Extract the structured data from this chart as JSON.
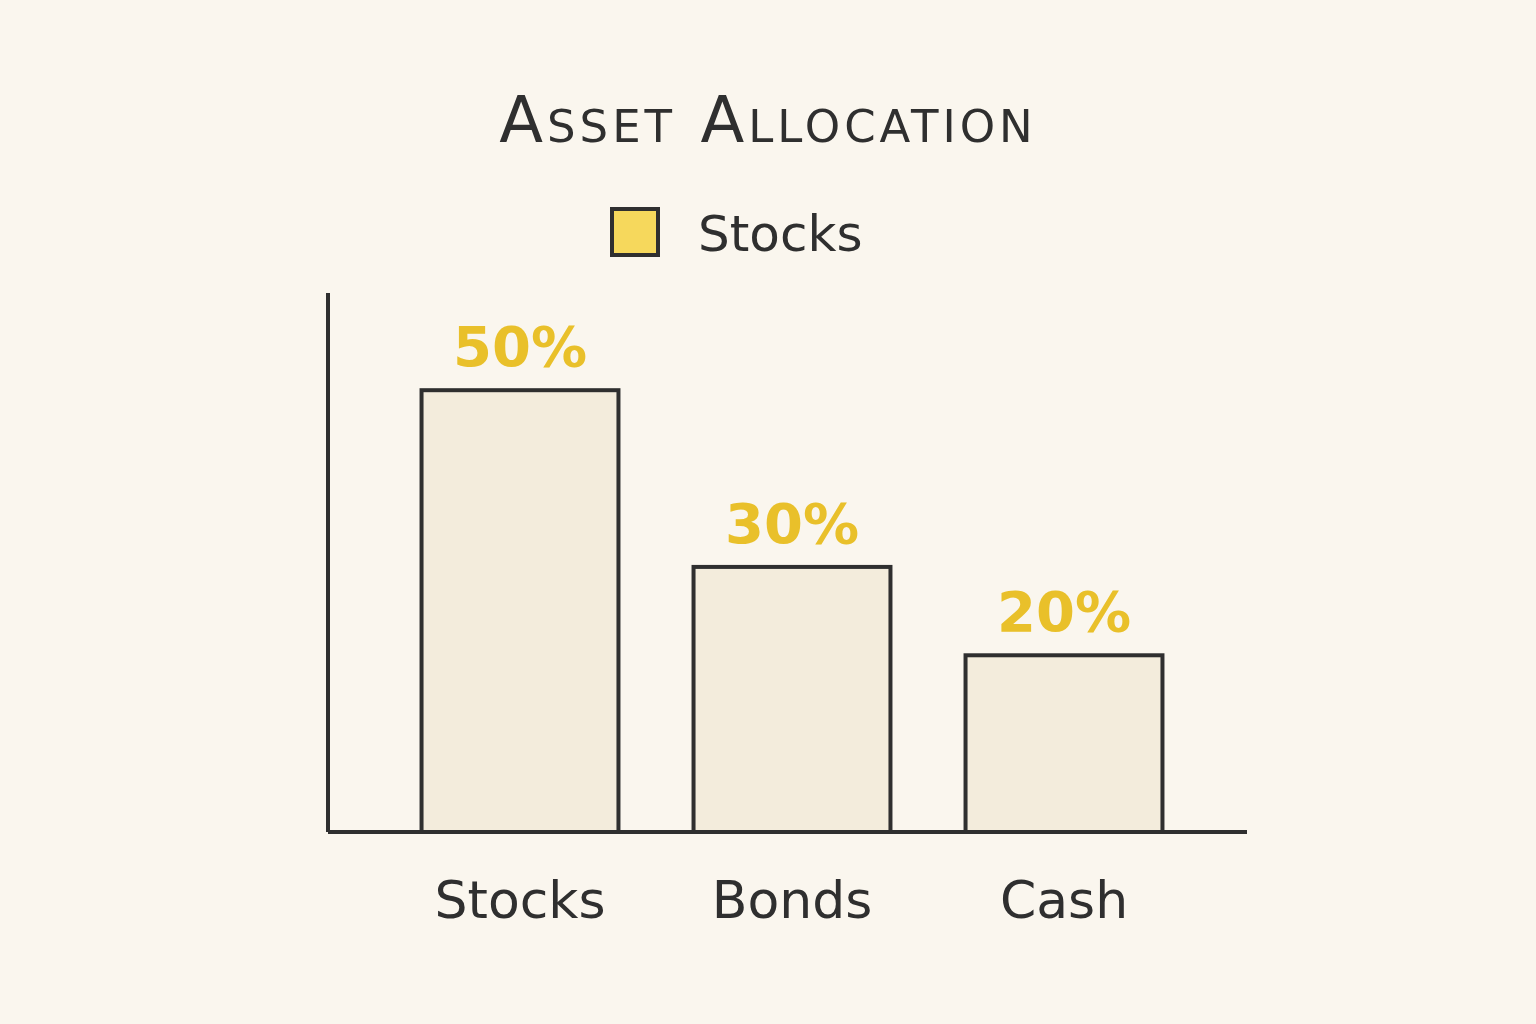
{
  "chart_data": {
    "type": "bar",
    "title": "Asset Allocation",
    "categories": [
      "Stocks",
      "Bonds",
      "Cash"
    ],
    "series": [
      {
        "name": "Stocks",
        "color": "#f3ecdc",
        "values": [
          50,
          30,
          20
        ],
        "value_labels": [
          "50%",
          "30%",
          "20%"
        ]
      }
    ],
    "legend": "top",
    "tick_labels": "x"
  }
}
